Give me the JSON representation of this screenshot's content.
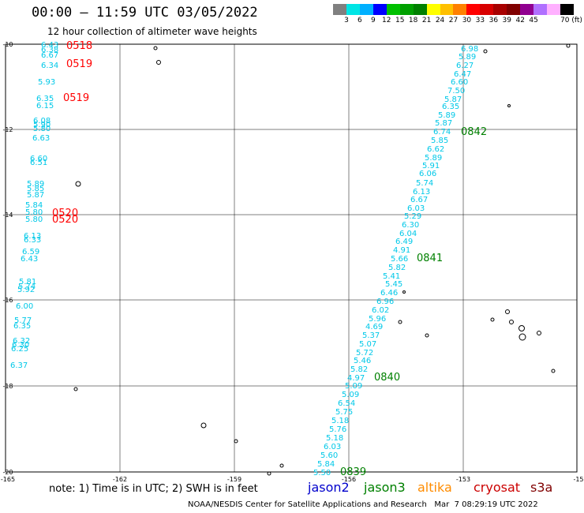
{
  "header": {
    "title": "00:00 — 11:59 UTC 03/05/2022",
    "subtitle": "12 hour collection of altimeter wave heights"
  },
  "colorbar": {
    "colors": [
      "#808080",
      "#00e5e5",
      "#00b0ff",
      "#0000ff",
      "#00c000",
      "#00a000",
      "#008000",
      "#ffff00",
      "#ffc000",
      "#ff8000",
      "#ff0000",
      "#d80000",
      "#a80000",
      "#800000",
      "#900090",
      "#b070ff",
      "#ffb0ff",
      "#000000"
    ],
    "labels": [
      "3",
      "6",
      "9",
      "12",
      "15",
      "18",
      "21",
      "24",
      "27",
      "30",
      "33",
      "36",
      "39",
      "42",
      "45",
      "70 (ft)"
    ]
  },
  "axes": {
    "x_ticks": [
      "-165",
      "-162",
      "-159",
      "-156",
      "-153",
      "-15"
    ],
    "y_ticks": [
      "-10",
      "-12",
      "-14",
      "-16",
      "-18",
      "-20"
    ]
  },
  "time_labels": [
    {
      "text": "0518",
      "color": "#ff0000"
    },
    {
      "text": "0519",
      "color": "#ff0000"
    },
    {
      "text": "0519",
      "color": "#ff0000"
    },
    {
      "text": "0520",
      "color": "#ff0000"
    },
    {
      "text": "0520",
      "color": "#ff0000"
    },
    {
      "text": "0842",
      "color": "#008000"
    },
    {
      "text": "0841",
      "color": "#008000"
    },
    {
      "text": "0840",
      "color": "#008000"
    },
    {
      "text": "0839",
      "color": "#008000"
    }
  ],
  "left_track_values": [
    "6.43",
    "6.38",
    "6.67",
    "6.34",
    "5.93",
    "6.35",
    "6.15",
    "6.08",
    "5.90",
    "5.80",
    "6.63",
    "6.60",
    "6.51",
    "5.89",
    "5.85",
    "5.87",
    "5.84",
    "5.80",
    "5.80",
    "6.13",
    "6.33",
    "6.59",
    "6.43",
    "5.81",
    "5.74",
    "5.92",
    "6.00",
    "5.77",
    "6.35",
    "6.32",
    "6.30",
    "6.25",
    "6.37"
  ],
  "right_track_values": [
    "6.98",
    "5.89",
    "6.27",
    "6.47",
    "6.60",
    "7.50",
    "5.87",
    "6.35",
    "5.89",
    "5.87",
    "6.74",
    "5.85",
    "6.62",
    "5.89",
    "5.91",
    "6.06",
    "5.74",
    "6.13",
    "6.67",
    "6.03",
    "5.29",
    "6.30",
    "6.04",
    "6.49",
    "4.91",
    "5.66",
    "5.82",
    "5.45",
    "5.41",
    "6.46",
    "6.96",
    "6.02",
    "5.96",
    "4.69",
    "5.37",
    "5.07",
    "5.72",
    "5.46",
    "5.82",
    "4.97",
    "5.09",
    "5.09",
    "6.54",
    "5.75",
    "5.18",
    "5.76",
    "5.18",
    "6.03",
    "5.60",
    "5.84",
    "5.50"
  ],
  "note": "note: 1) Time is in UTC; 2) SWH is in feet",
  "satellites": [
    {
      "name": "jason2",
      "color": "#0000cc"
    },
    {
      "name": "jason3",
      "color": "#008000"
    },
    {
      "name": "altika",
      "color": "#ff8c00"
    },
    {
      "name": "cryosat",
      "color": "#cc0000"
    },
    {
      "name": "s3a",
      "color": "#800000"
    }
  ],
  "footer": "NOAA/NESDIS Center for Satellite Applications and Research   Mar  7 08:29:19 UTC 2022"
}
